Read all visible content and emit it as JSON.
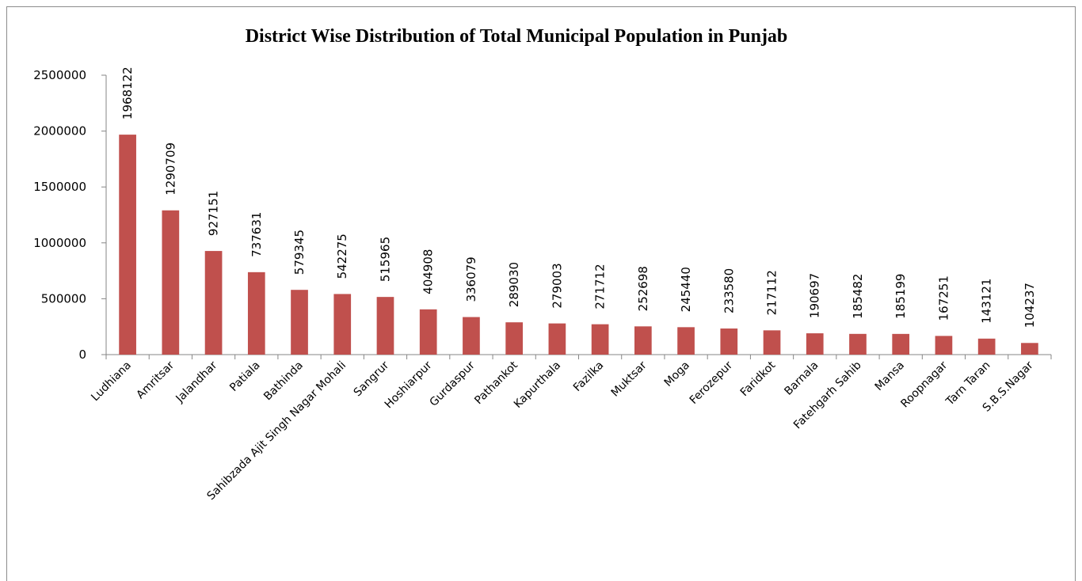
{
  "chart_data": {
    "type": "bar",
    "title": "District Wise Distribution of Total Municipal Population in Punjab",
    "xlabel": "",
    "ylabel": "",
    "ylim": [
      0,
      2500000
    ],
    "yticks": [
      "0",
      "500000",
      "1000000",
      "1500000",
      "2000000",
      "2500000"
    ],
    "grid": false,
    "legend": "none",
    "bar_color": "#c0504d",
    "categories": [
      "Ludhiana",
      "Amritsar",
      "Jalandhar",
      "Patiala",
      "Bathinda",
      "Sahibzada Ajit Singh Nagar Mohali",
      "Sangrur",
      "Hoshiarpur",
      "Gurdaspur",
      "Pathankot",
      "Kapurthala",
      "Fazilka",
      "Muktsar",
      "Moga",
      "Ferozepur",
      "Faridkot",
      "Barnala",
      "Fatehgarh Sahib",
      "Mansa",
      "Roopnagar",
      "Tarn Taran",
      "S.B.S.Nagar"
    ],
    "values": [
      1968122,
      1290709,
      927151,
      737631,
      579345,
      542275,
      515965,
      404908,
      336079,
      289030,
      279003,
      271712,
      252698,
      245440,
      233580,
      217112,
      190697,
      185482,
      185199,
      167251,
      143121,
      104237
    ],
    "data_labels": [
      "1968122",
      "1290709",
      "927151",
      "737631",
      "579345",
      "542275",
      "515965",
      "404908",
      "336079",
      "289030",
      "279003",
      "271712",
      "252698",
      "245440",
      "233580",
      "217112",
      "190697",
      "185482",
      "185199",
      "167251",
      "143121",
      "104237"
    ]
  }
}
